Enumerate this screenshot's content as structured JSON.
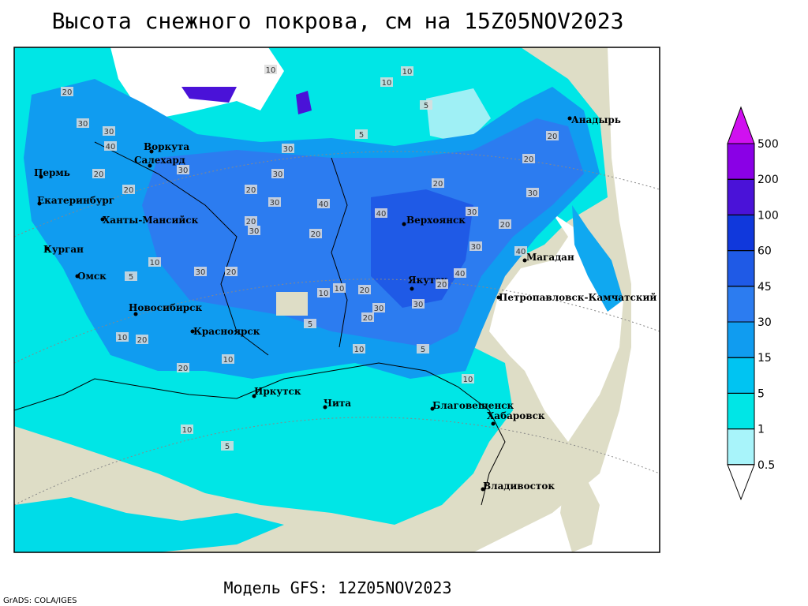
{
  "title": "Высота снежного покрова, см на 15Z05NOV2023",
  "footer": "Модель GFS: 12Z05NOV2023",
  "credit": "GrADS: COLA/IGES",
  "cities": [
    "Анадырь",
    "Воркута",
    "Салехард",
    "Пермь",
    "Екатеринбург",
    "Ханты-Мансийск",
    "Верхоянск",
    "Курган",
    "Магадан",
    "Омск",
    "Якутск",
    "Петропавловск-Камчатский",
    "Новосибирск",
    "Красноярск",
    "Иркутск",
    "Чита",
    "Благовещенск",
    "Хабаровск",
    "Владивосток"
  ],
  "contour_labels": [
    10,
    10,
    10,
    5,
    5,
    20,
    30,
    30,
    40,
    20,
    30,
    20,
    20,
    30,
    30,
    20,
    30,
    20,
    40,
    30,
    40,
    20,
    30,
    20,
    20,
    20,
    30,
    30,
    40,
    40,
    20,
    30,
    20,
    30,
    10,
    10,
    20,
    10,
    5,
    10,
    10,
    20,
    10,
    5,
    10,
    20,
    30,
    20,
    5,
    10,
    5
  ],
  "legend": {
    "levels": [
      0.5,
      1,
      5,
      15,
      30,
      45,
      60,
      100,
      200,
      500
    ],
    "colors": [
      "#ffffff",
      "#a8f4fa",
      "#00e6e6",
      "#00c4f2",
      "#109cf0",
      "#2c7cf0",
      "#1f5ae6",
      "#1038dc",
      "#4a12d8",
      "#8a00e6",
      "#d010f0"
    ]
  }
}
